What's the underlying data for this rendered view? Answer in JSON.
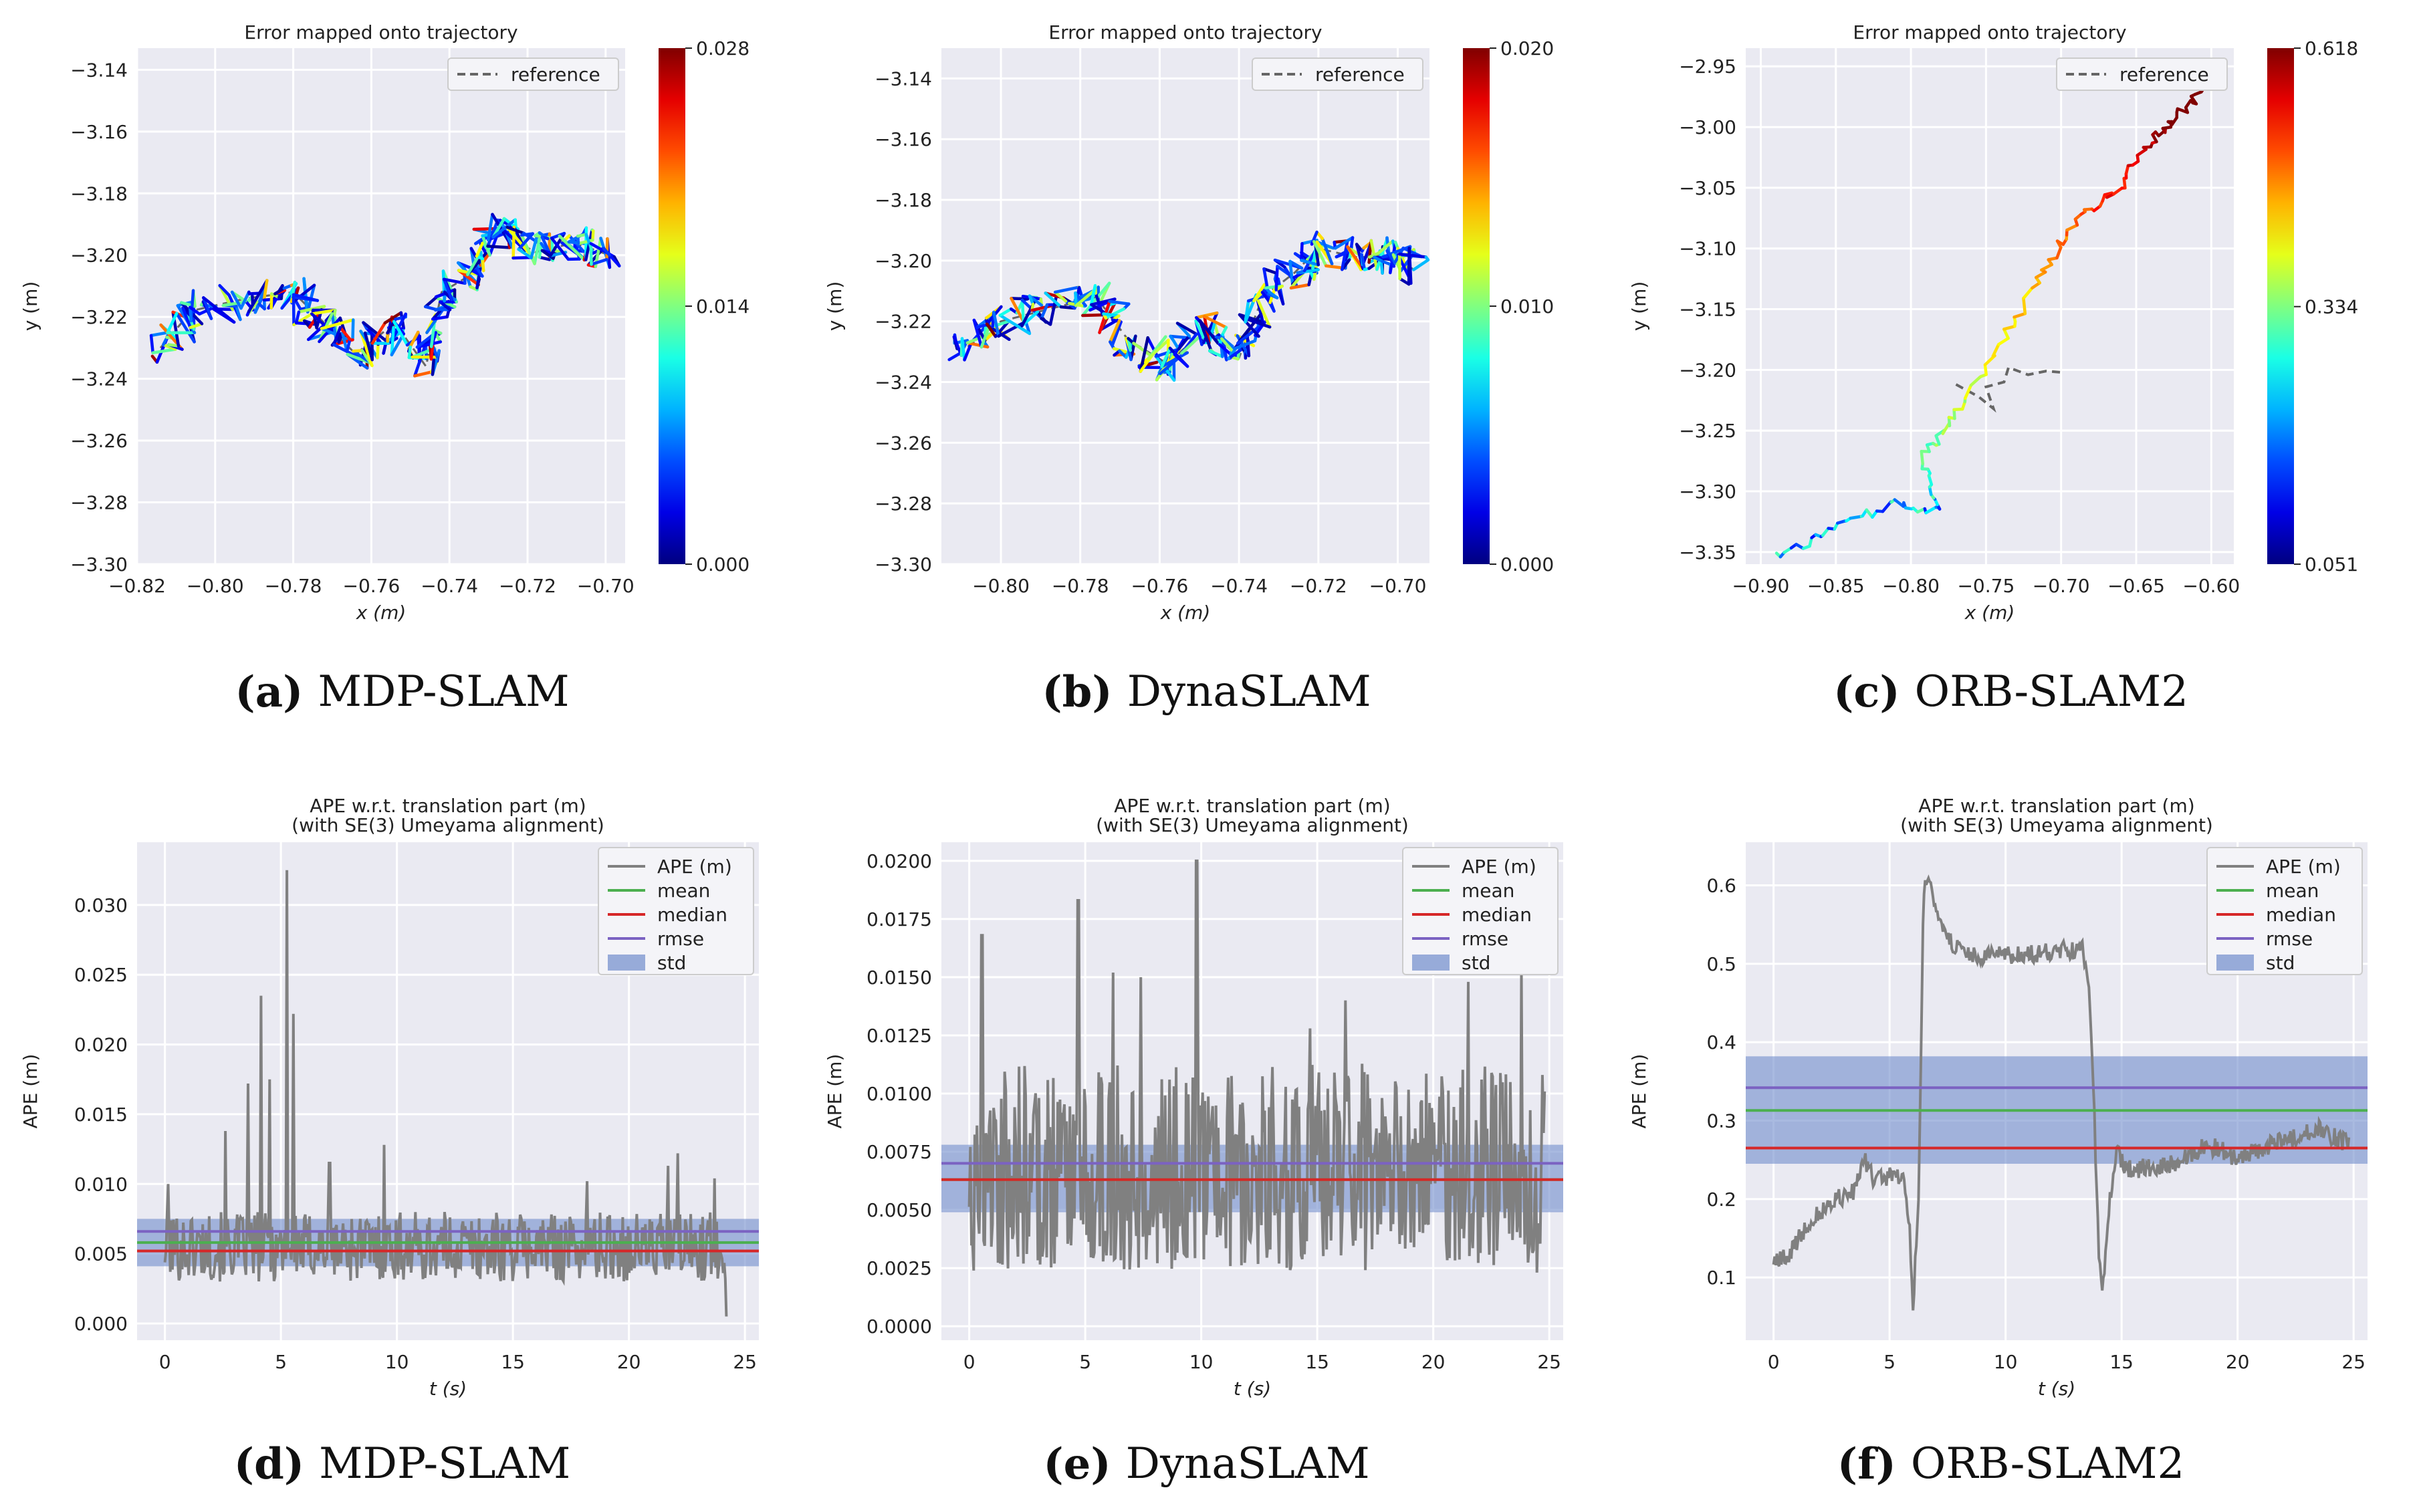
{
  "captions": [
    {
      "label": "(a)",
      "method": "MDP-SLAM"
    },
    {
      "label": "(b)",
      "method": "DynaSLAM"
    },
    {
      "label": "(c)",
      "method": "ORB-SLAM2"
    },
    {
      "label": "(d)",
      "method": "MDP-SLAM"
    },
    {
      "label": "(e)",
      "method": "DynaSLAM"
    },
    {
      "label": "(f)",
      "method": "ORB-SLAM2"
    }
  ],
  "colors": {
    "plot_bg": "#eaeaf2",
    "grid": "#ffffff",
    "ape_line": "#808080",
    "mean": "#4caf50",
    "median": "#d62728",
    "rmse": "#7b62c2",
    "std": "#6f8ccc",
    "reference": "#666666"
  },
  "chart_data": [
    {
      "type": "line",
      "kind": "trajectory",
      "title": "Error mapped onto trajectory",
      "method": "MDP-SLAM",
      "xlabel": "x (m)",
      "ylabel": "y (m)",
      "xlim": [
        -0.82,
        -0.695
      ],
      "ylim": [
        -3.3,
        -3.133
      ],
      "xticks": [
        -0.82,
        -0.8,
        -0.78,
        -0.76,
        -0.74,
        -0.72,
        -0.7
      ],
      "xtick_labels": [
        "−0.82",
        "−0.80",
        "−0.78",
        "−0.76",
        "−0.74",
        "−0.72",
        "−0.70"
      ],
      "yticks": [
        -3.14,
        -3.16,
        -3.18,
        -3.2,
        -3.22,
        -3.24,
        -3.26,
        -3.28,
        -3.3
      ],
      "ytick_labels": [
        "−3.14",
        "−3.16",
        "−3.18",
        "−3.20",
        "−3.22",
        "−3.24",
        "−3.26",
        "−3.28",
        "−3.30"
      ],
      "legend": "reference",
      "colorbar": {
        "min": 0.0,
        "max": 0.028,
        "ticks": [
          0.0,
          0.014,
          0.028
        ],
        "tick_labels": [
          "0.000",
          "0.014",
          "0.028"
        ]
      },
      "anchors": [
        [
          -0.814,
          -3.23
        ],
        [
          -0.806,
          -3.218
        ],
        [
          -0.792,
          -3.214
        ],
        [
          -0.78,
          -3.212
        ],
        [
          -0.772,
          -3.222
        ],
        [
          -0.764,
          -3.232
        ],
        [
          -0.754,
          -3.222
        ],
        [
          -0.746,
          -3.236
        ],
        [
          -0.742,
          -3.212
        ],
        [
          -0.734,
          -3.206
        ],
        [
          -0.728,
          -3.192
        ],
        [
          -0.718,
          -3.199
        ],
        [
          -0.708,
          -3.196
        ],
        [
          -0.699,
          -3.2
        ]
      ],
      "seed": 11,
      "jitter": [
        0.004,
        0.006
      ],
      "mode": "noisy"
    },
    {
      "type": "line",
      "kind": "trajectory",
      "title": "Error mapped onto trajectory",
      "method": "DynaSLAM",
      "xlabel": "x (m)",
      "ylabel": "y (m)",
      "xlim": [
        -0.815,
        -0.692
      ],
      "ylim": [
        -3.3,
        -3.13
      ],
      "xticks": [
        -0.8,
        -0.78,
        -0.76,
        -0.74,
        -0.72,
        -0.7
      ],
      "xtick_labels": [
        "−0.80",
        "−0.78",
        "−0.76",
        "−0.74",
        "−0.72",
        "−0.70"
      ],
      "yticks": [
        -3.14,
        -3.16,
        -3.18,
        -3.2,
        -3.22,
        -3.24,
        -3.26,
        -3.28,
        -3.3
      ],
      "ytick_labels": [
        "−3.14",
        "−3.16",
        "−3.18",
        "−3.20",
        "−3.22",
        "−3.24",
        "−3.26",
        "−3.28",
        "−3.30"
      ],
      "legend": "reference",
      "colorbar": {
        "min": 0.0,
        "max": 0.02,
        "ticks": [
          0.0,
          0.01,
          0.02
        ],
        "tick_labels": [
          "0.000",
          "0.010",
          "0.020"
        ]
      },
      "anchors": [
        [
          -0.811,
          -3.231
        ],
        [
          -0.8,
          -3.22
        ],
        [
          -0.788,
          -3.216
        ],
        [
          -0.776,
          -3.212
        ],
        [
          -0.768,
          -3.226
        ],
        [
          -0.758,
          -3.234
        ],
        [
          -0.748,
          -3.222
        ],
        [
          -0.74,
          -3.232
        ],
        [
          -0.734,
          -3.212
        ],
        [
          -0.726,
          -3.204
        ],
        [
          -0.72,
          -3.196
        ],
        [
          -0.71,
          -3.199
        ],
        [
          -0.701,
          -3.198
        ],
        [
          -0.696,
          -3.203
        ]
      ],
      "seed": 23,
      "jitter": [
        0.004,
        0.006
      ],
      "mode": "noisy"
    },
    {
      "type": "line",
      "kind": "trajectory",
      "title": "Error mapped onto trajectory",
      "method": "ORB-SLAM2",
      "xlabel": "x (m)",
      "ylabel": "y (m)",
      "xlim": [
        -0.91,
        -0.585
      ],
      "ylim": [
        -3.36,
        -2.935
      ],
      "xticks": [
        -0.9,
        -0.85,
        -0.8,
        -0.75,
        -0.7,
        -0.65,
        -0.6
      ],
      "xtick_labels": [
        "−0.90",
        "−0.85",
        "−0.80",
        "−0.75",
        "−0.70",
        "−0.65",
        "−0.60"
      ],
      "yticks": [
        -2.95,
        -3.0,
        -3.05,
        -3.1,
        -3.15,
        -3.2,
        -3.25,
        -3.3,
        -3.35
      ],
      "ytick_labels": [
        "−2.95",
        "−3.00",
        "−3.05",
        "−3.10",
        "−3.15",
        "−3.20",
        "−3.25",
        "−3.30",
        "−3.35"
      ],
      "legend": "reference",
      "colorbar": {
        "min": 0.051,
        "max": 0.618,
        "ticks": [
          0.051,
          0.334,
          0.618
        ],
        "tick_labels": [
          "0.051",
          "0.334",
          "0.618"
        ]
      },
      "anchors": [
        [
          -0.888,
          -3.352
        ],
        [
          -0.85,
          -3.332
        ],
        [
          -0.812,
          -3.31
        ],
        [
          -0.78,
          -3.318
        ],
        [
          -0.792,
          -3.27
        ],
        [
          -0.772,
          -3.24
        ],
        [
          -0.74,
          -3.18
        ],
        [
          -0.712,
          -3.12
        ],
        [
          -0.69,
          -3.075
        ],
        [
          -0.662,
          -3.052
        ],
        [
          -0.64,
          -3.01
        ],
        [
          -0.625,
          -2.994
        ],
        [
          -0.606,
          -2.97
        ]
      ],
      "seed": 37,
      "jitter": [
        0.003,
        0.004
      ],
      "mode": "smooth"
    },
    {
      "type": "line",
      "kind": "ape",
      "title": "APE w.r.t. translation part (m)",
      "subtitle": "(with SE(3) Umeyama alignment)",
      "method": "MDP-SLAM",
      "xlabel": "t (s)",
      "ylabel": "APE (m)",
      "xlim": [
        -1.2,
        25.6
      ],
      "ylim": [
        -0.0012,
        0.0345
      ],
      "xticks": [
        0,
        5,
        10,
        15,
        20,
        25
      ],
      "xtick_labels": [
        "0",
        "5",
        "10",
        "15",
        "20",
        "25"
      ],
      "yticks": [
        0.0,
        0.005,
        0.01,
        0.015,
        0.02,
        0.025,
        0.03
      ],
      "ytick_labels": [
        "0.000",
        "0.005",
        "0.010",
        "0.015",
        "0.020",
        "0.025",
        "0.030"
      ],
      "legend": [
        "APE (m)",
        "mean",
        "median",
        "rmse",
        "std"
      ],
      "mean": 0.0058,
      "median": 0.0052,
      "rmse": 0.0066,
      "std_band": [
        0.0041,
        0.0075
      ],
      "t_end": 24.2,
      "profile": [
        [
          0,
          0.0055
        ],
        [
          24.2,
          0.0055
        ]
      ],
      "noise": 0.0025,
      "seed": 101,
      "spikes": [
        [
          0.15,
          0.01
        ],
        [
          2.6,
          0.0138
        ],
        [
          3.6,
          0.0172
        ],
        [
          4.15,
          0.0235
        ],
        [
          4.5,
          0.0175
        ],
        [
          5.25,
          0.0325
        ],
        [
          5.55,
          0.0222
        ],
        [
          7.1,
          0.0115
        ],
        [
          9.45,
          0.0128
        ],
        [
          18.2,
          0.0102
        ],
        [
          21.7,
          0.0113
        ],
        [
          22.1,
          0.0122
        ],
        [
          23.7,
          0.0104
        ],
        [
          24.2,
          0.0005
        ]
      ]
    },
    {
      "type": "line",
      "kind": "ape",
      "title": "APE w.r.t. translation part (m)",
      "subtitle": "(with SE(3) Umeyama alignment)",
      "method": "DynaSLAM",
      "xlabel": "t (s)",
      "ylabel": "APE (m)",
      "xlim": [
        -1.2,
        25.6
      ],
      "ylim": [
        -0.0006,
        0.0208
      ],
      "xticks": [
        0,
        5,
        10,
        15,
        20,
        25
      ],
      "xtick_labels": [
        "0",
        "5",
        "10",
        "15",
        "20",
        "25"
      ],
      "yticks": [
        0.0,
        0.0025,
        0.005,
        0.0075,
        0.01,
        0.0125,
        0.015,
        0.0175,
        0.02
      ],
      "ytick_labels": [
        "0.0000",
        "0.0025",
        "0.0050",
        "0.0075",
        "0.0100",
        "0.0125",
        "0.0150",
        "0.0175",
        "0.0200"
      ],
      "legend": [
        "APE (m)",
        "mean",
        "median",
        "rmse",
        "std"
      ],
      "mean": 0.0063,
      "median": 0.0063,
      "rmse": 0.007,
      "std_band": [
        0.0049,
        0.0078
      ],
      "t_end": 24.8,
      "profile": [
        [
          0,
          0.0068
        ],
        [
          24.8,
          0.0068
        ]
      ],
      "noise": 0.0045,
      "seed": 202,
      "spikes": [
        [
          0.55,
          0.0168
        ],
        [
          4.7,
          0.0183
        ],
        [
          6.2,
          0.0152
        ],
        [
          7.4,
          0.015
        ],
        [
          9.8,
          0.02
        ],
        [
          14.7,
          0.0128
        ],
        [
          16.2,
          0.014
        ],
        [
          21.5,
          0.0148
        ],
        [
          23.8,
          0.0154
        ]
      ]
    },
    {
      "type": "line",
      "kind": "ape",
      "title": "APE w.r.t. translation part (m)",
      "subtitle": "(with SE(3) Umeyama alignment)",
      "method": "ORB-SLAM2",
      "xlabel": "t (s)",
      "ylabel": "APE (m)",
      "xlim": [
        -1.2,
        25.6
      ],
      "ylim": [
        0.02,
        0.655
      ],
      "xticks": [
        0,
        5,
        10,
        15,
        20,
        25
      ],
      "xtick_labels": [
        "0",
        "5",
        "10",
        "15",
        "20",
        "25"
      ],
      "yticks": [
        0.1,
        0.2,
        0.3,
        0.4,
        0.5,
        0.6
      ],
      "ytick_labels": [
        "0.1",
        "0.2",
        "0.3",
        "0.4",
        "0.5",
        "0.6"
      ],
      "legend": [
        "APE (m)",
        "mean",
        "median",
        "rmse",
        "std"
      ],
      "mean": 0.313,
      "median": 0.265,
      "rmse": 0.342,
      "std_band": [
        0.245,
        0.382
      ],
      "t_end": 24.8,
      "profile": [
        [
          0,
          0.12
        ],
        [
          0.6,
          0.125
        ],
        [
          1.5,
          0.17
        ],
        [
          2.7,
          0.2
        ],
        [
          3.5,
          0.21
        ],
        [
          3.9,
          0.25
        ],
        [
          4.3,
          0.225
        ],
        [
          5.2,
          0.23
        ],
        [
          5.6,
          0.23
        ],
        [
          5.85,
          0.17
        ],
        [
          6.0,
          0.055
        ],
        [
          6.25,
          0.2
        ],
        [
          6.45,
          0.575
        ],
        [
          6.6,
          0.612
        ],
        [
          7.0,
          0.57
        ],
        [
          7.6,
          0.53
        ],
        [
          8.2,
          0.51
        ],
        [
          10,
          0.51
        ],
        [
          12,
          0.515
        ],
        [
          13.3,
          0.52
        ],
        [
          13.6,
          0.48
        ],
        [
          13.8,
          0.33
        ],
        [
          14.0,
          0.14
        ],
        [
          14.2,
          0.085
        ],
        [
          14.5,
          0.2
        ],
        [
          14.8,
          0.26
        ],
        [
          15.2,
          0.237
        ],
        [
          17,
          0.243
        ],
        [
          18.2,
          0.26
        ],
        [
          18.6,
          0.27
        ],
        [
          19.5,
          0.26
        ],
        [
          20,
          0.25
        ],
        [
          21,
          0.265
        ],
        [
          22.5,
          0.28
        ],
        [
          23.5,
          0.29
        ],
        [
          24.4,
          0.275
        ],
        [
          24.8,
          0.27
        ]
      ],
      "noise": 0.012,
      "seed": 303,
      "spikes": []
    }
  ]
}
